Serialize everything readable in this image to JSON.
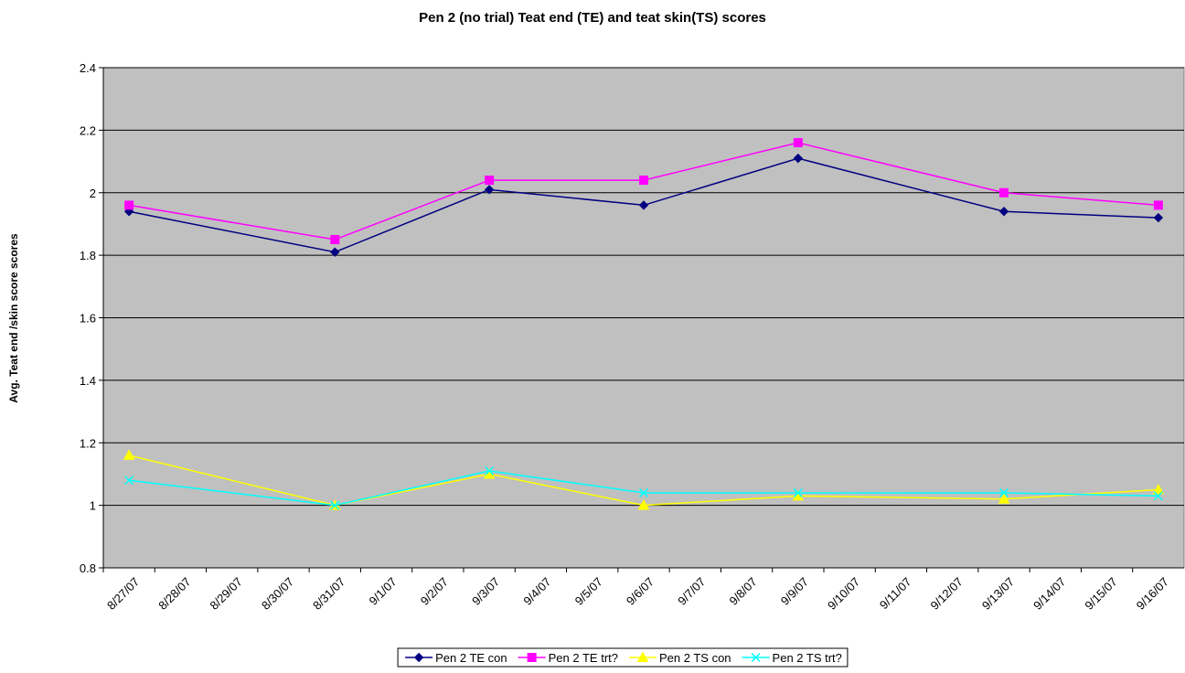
{
  "chart_data": {
    "type": "line",
    "title": "Pen 2 (no trial) Teat end (TE) and teat skin(TS) scores",
    "y_label": "Avg. Teat end /skin score scores",
    "x": [
      "8/27/07",
      "8/31/07",
      "9/3/07",
      "9/6/07",
      "9/9/07",
      "9/13/07",
      "9/16/07"
    ],
    "xticks": [
      "8/27/07",
      "8/28/07",
      "8/29/07",
      "8/30/07",
      "8/31/07",
      "9/1/07",
      "9/2/07",
      "9/3/07",
      "9/4/07",
      "9/5/07",
      "9/6/07",
      "9/7/07",
      "9/8/07",
      "9/9/07",
      "9/10/07",
      "9/11/07",
      "9/12/07",
      "9/13/07",
      "9/14/07",
      "9/15/07",
      "9/16/07"
    ],
    "series": [
      {
        "name": "Pen 2 TE con",
        "color": "#000080",
        "marker": "diamond",
        "values": [
          1.94,
          1.81,
          2.01,
          1.96,
          2.11,
          1.94,
          1.92
        ]
      },
      {
        "name": "Pen 2 TE trt?",
        "color": "#ff00ff",
        "marker": "square",
        "values": [
          1.96,
          1.85,
          2.04,
          2.04,
          2.16,
          2.0,
          1.96
        ]
      },
      {
        "name": "Pen 2 TS con",
        "color": "#ffff00",
        "marker": "triangle",
        "values": [
          1.16,
          1.0,
          1.1,
          1.0,
          1.03,
          1.02,
          1.05
        ]
      },
      {
        "name": "Pen 2 TS trt?",
        "color": "#00ffff",
        "marker": "x",
        "values": [
          1.08,
          1.0,
          1.11,
          1.04,
          1.04,
          1.04,
          1.03
        ]
      }
    ],
    "ylim": [
      0.8,
      2.4
    ],
    "yticks": [
      0.8,
      1,
      1.2,
      1.4,
      1.6,
      1.8,
      2,
      2.2,
      2.4
    ],
    "grid": true,
    "legend": "bottom",
    "plot_background": "#c0c0c0"
  }
}
